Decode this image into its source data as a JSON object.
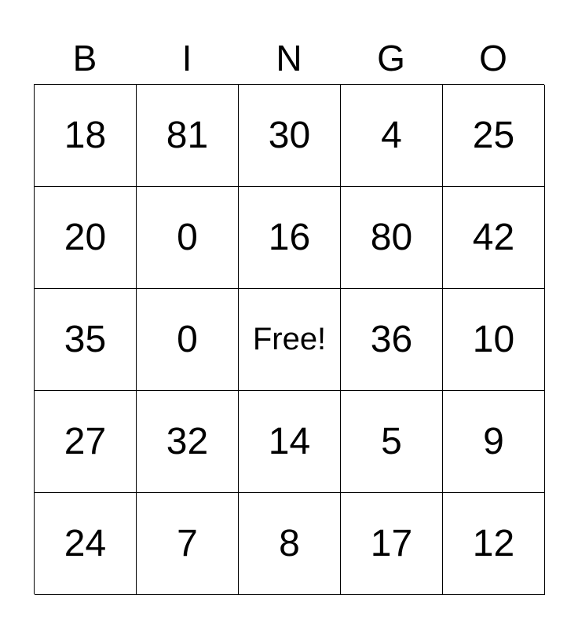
{
  "header": [
    "B",
    "I",
    "N",
    "G",
    "O"
  ],
  "rows": [
    [
      "18",
      "81",
      "30",
      "4",
      "25"
    ],
    [
      "20",
      "0",
      "16",
      "80",
      "42"
    ],
    [
      "35",
      "0",
      "Free!",
      "36",
      "10"
    ],
    [
      "27",
      "32",
      "14",
      "5",
      "9"
    ],
    [
      "24",
      "7",
      "8",
      "17",
      "12"
    ]
  ]
}
